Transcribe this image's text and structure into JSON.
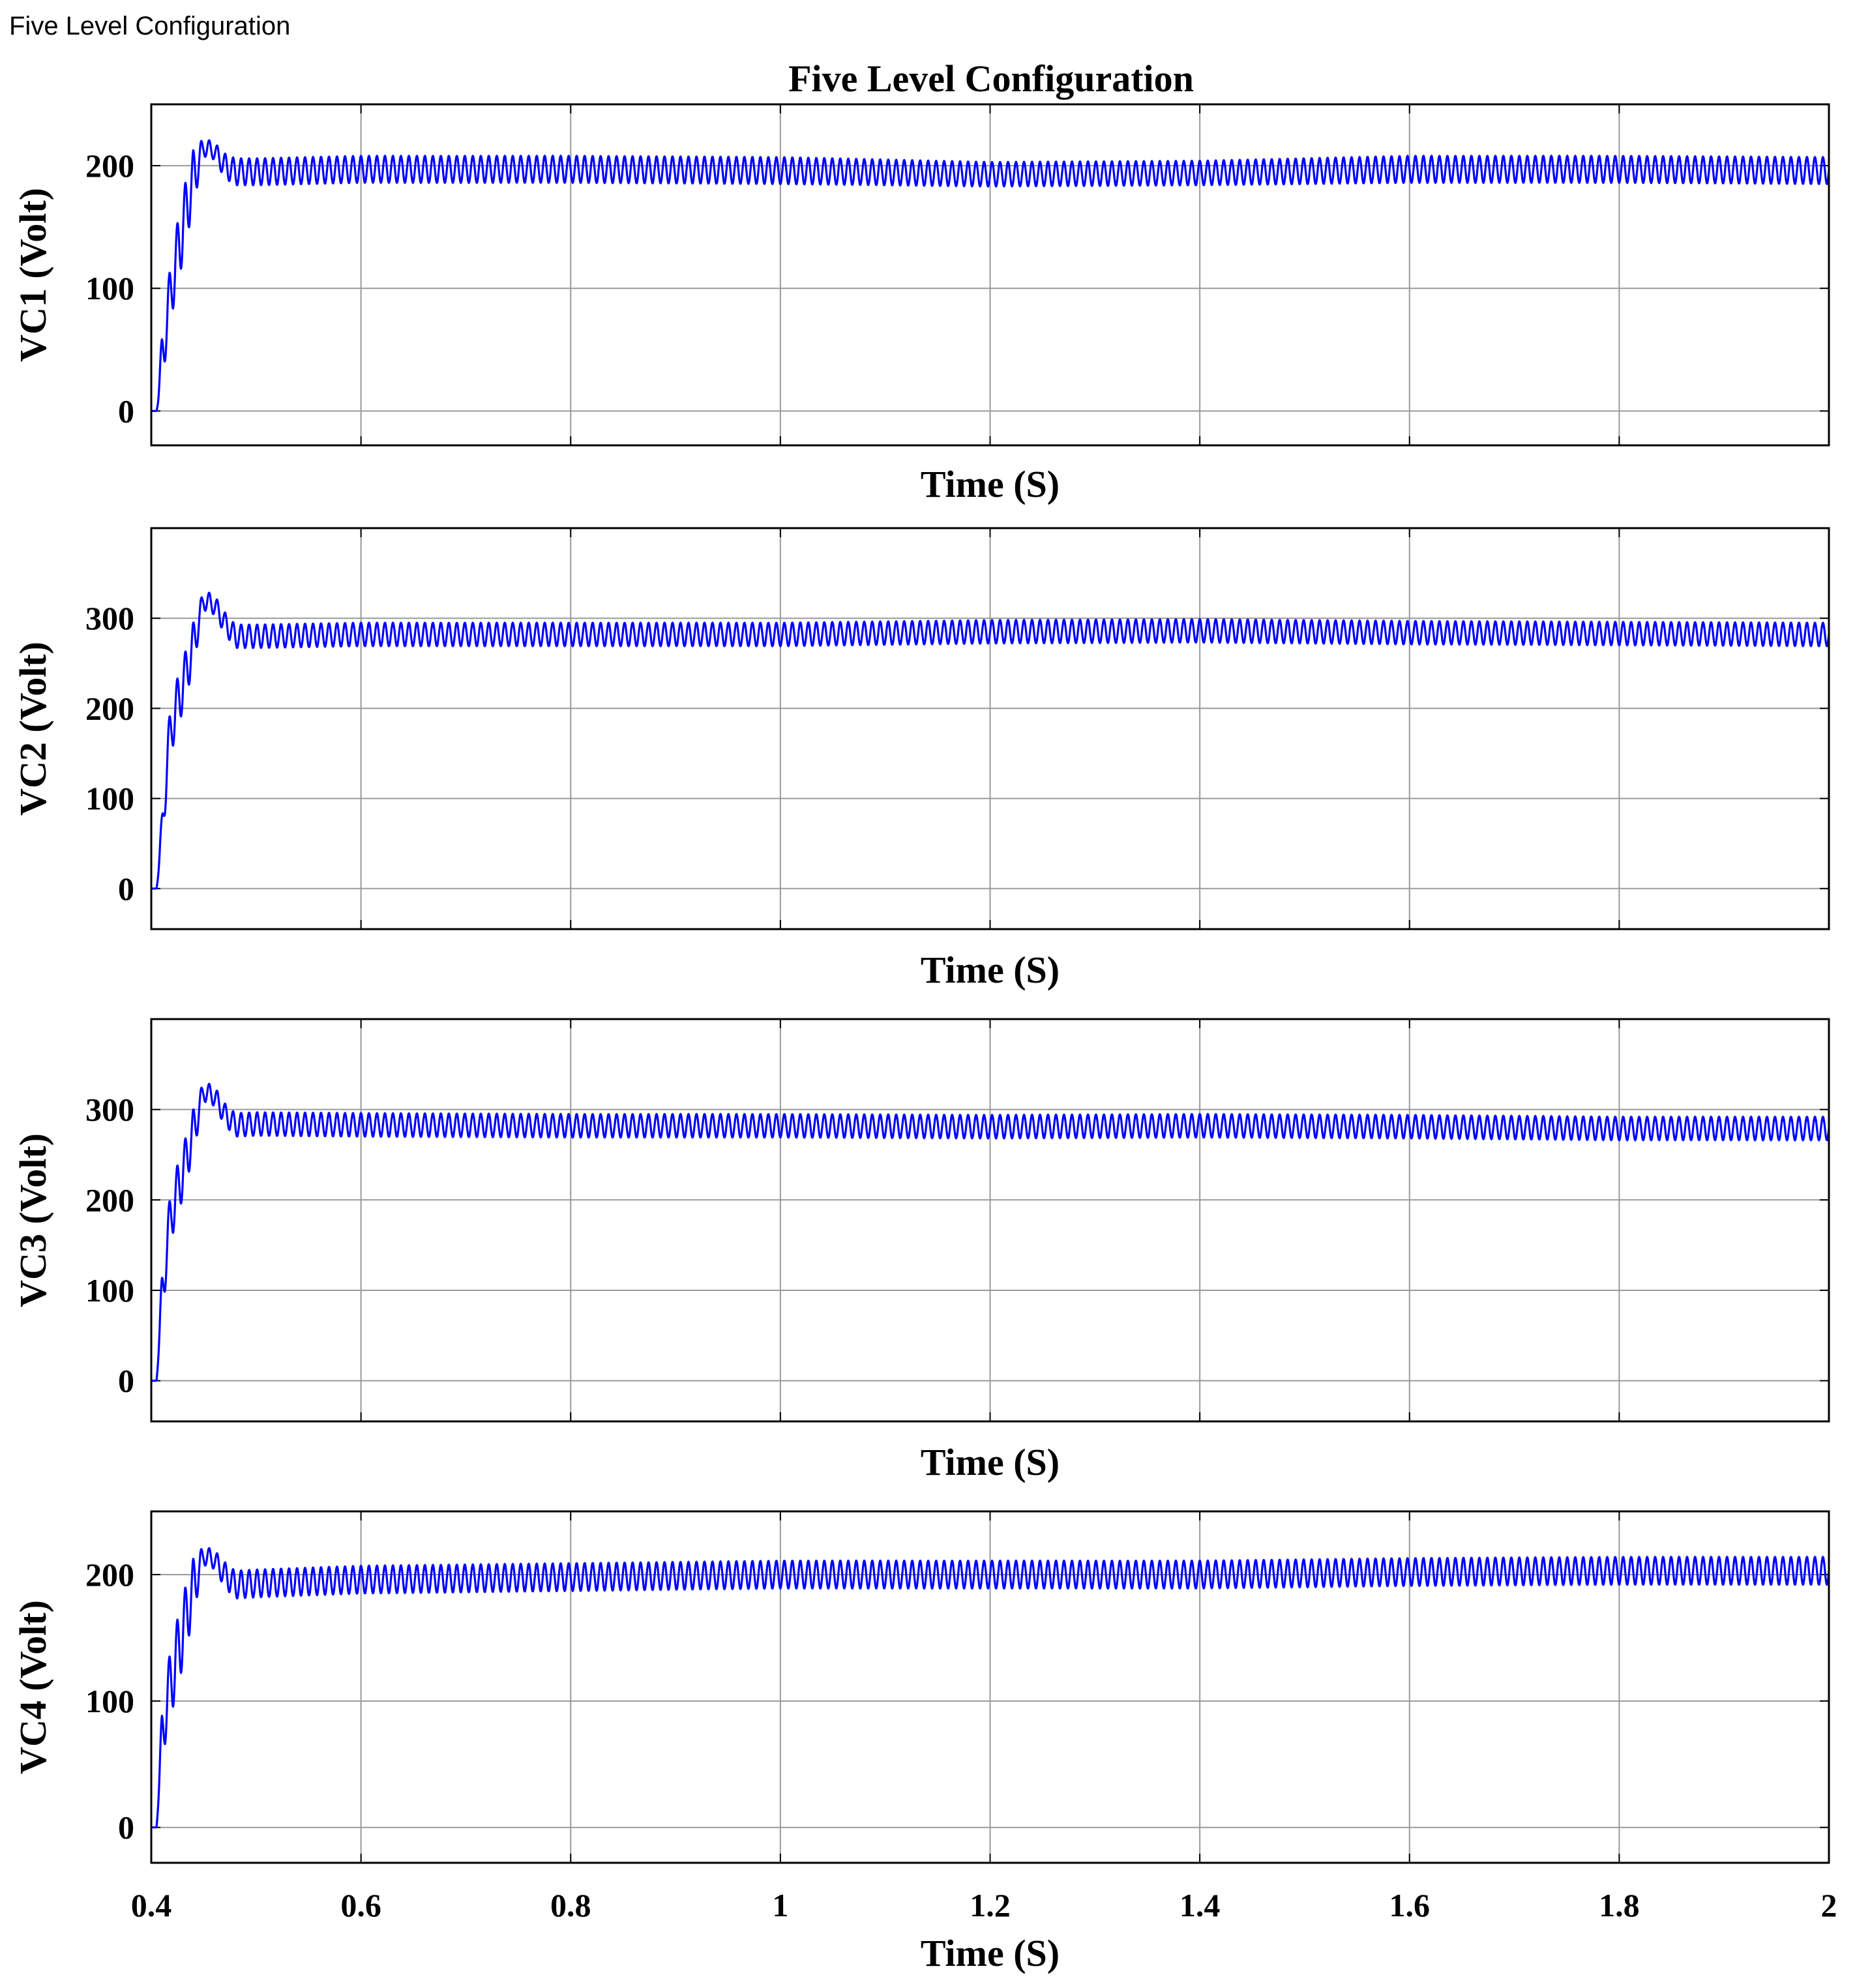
{
  "window": {
    "title": "Five Level Configuration"
  },
  "figure": {
    "title": "Five Level Configuration"
  },
  "chart_data": [
    {
      "type": "line",
      "title": "Five Level Configuration",
      "xlabel": "Time (S)",
      "ylabel": "VC1 (Volt)",
      "xlim": [
        0.4,
        2.0
      ],
      "ylim": [
        -28,
        250
      ],
      "xticks": [
        0.4,
        0.6,
        0.8,
        1.0,
        1.2,
        1.4,
        1.6,
        1.8,
        2.0
      ],
      "xtick_labels": [],
      "yticks": [
        0,
        100,
        200
      ],
      "ytick_labels": [
        "0",
        "100",
        "200"
      ],
      "grid": true,
      "color": "#0000ff",
      "series": [
        {
          "x": [
            0.4,
            0.405,
            0.41,
            0.415,
            0.42,
            0.43,
            0.44,
            0.45,
            0.46,
            0.47,
            0.48,
            0.5,
            0.6,
            0.8,
            1.0,
            1.2,
            1.4,
            1.6,
            1.8,
            2.0
          ],
          "y": [
            0,
            0,
            40,
            75,
            105,
            150,
            190,
            215,
            212,
            200,
            195,
            195,
            197,
            197,
            196,
            193,
            194,
            197,
            197,
            196
          ],
          "ripple": [
            0,
            0,
            40,
            45,
            50,
            55,
            45,
            15,
            14,
            20,
            22,
            22,
            22,
            22,
            22,
            20,
            20,
            22,
            22,
            22
          ]
        }
      ]
    },
    {
      "type": "line",
      "xlabel": "Time (S)",
      "ylabel": "VC2 (Volt)",
      "xlim": [
        0.4,
        2.0
      ],
      "ylim": [
        -45,
        400
      ],
      "xticks": [
        0.4,
        0.6,
        0.8,
        1.0,
        1.2,
        1.4,
        1.6,
        1.8,
        2.0
      ],
      "xtick_labels": [],
      "yticks": [
        0,
        100,
        200,
        300
      ],
      "ytick_labels": [
        "0",
        "100",
        "200",
        "300"
      ],
      "grid": true,
      "color": "#0000ff",
      "series": [
        {
          "x": [
            0.4,
            0.405,
            0.41,
            0.415,
            0.42,
            0.43,
            0.44,
            0.45,
            0.46,
            0.47,
            0.48,
            0.5,
            0.6,
            0.8,
            1.0,
            1.2,
            1.4,
            1.6,
            1.8,
            2.0
          ],
          "y": [
            0,
            0,
            60,
            140,
            185,
            225,
            270,
            320,
            315,
            295,
            280,
            280,
            282,
            282,
            282,
            285,
            286,
            284,
            283,
            282
          ],
          "ripple": [
            0,
            0,
            40,
            60,
            60,
            55,
            50,
            22,
            22,
            24,
            26,
            26,
            26,
            26,
            26,
            26,
            26,
            26,
            26,
            26
          ]
        }
      ]
    },
    {
      "type": "line",
      "xlabel": "Time (S)",
      "ylabel": "VC3 (Volt)",
      "xlim": [
        0.4,
        2.0
      ],
      "ylim": [
        -45,
        400
      ],
      "xticks": [
        0.4,
        0.6,
        0.8,
        1.0,
        1.2,
        1.4,
        1.6,
        1.8,
        2.0
      ],
      "xtick_labels": [],
      "yticks": [
        0,
        100,
        200,
        300
      ],
      "ytick_labels": [
        "0",
        "100",
        "200",
        "300"
      ],
      "grid": true,
      "color": "#0000ff",
      "series": [
        {
          "x": [
            0.4,
            0.405,
            0.41,
            0.415,
            0.42,
            0.43,
            0.44,
            0.45,
            0.46,
            0.47,
            0.48,
            0.5,
            0.6,
            0.8,
            1.0,
            1.2,
            1.4,
            1.6,
            1.8,
            2.0
          ],
          "y": [
            0,
            0,
            90,
            150,
            190,
            230,
            275,
            320,
            315,
            295,
            283,
            284,
            283,
            282,
            282,
            281,
            282,
            281,
            279,
            279
          ],
          "ripple": [
            0,
            0,
            50,
            60,
            60,
            55,
            50,
            22,
            22,
            24,
            26,
            26,
            26,
            26,
            26,
            26,
            26,
            26,
            26,
            26
          ]
        }
      ]
    },
    {
      "type": "line",
      "xlabel": "Time (S)",
      "ylabel": "VC4 (Volt)",
      "xlim": [
        0.4,
        2.0
      ],
      "ylim": [
        -28,
        250
      ],
      "xticks": [
        0.4,
        0.6,
        0.8,
        1.0,
        1.2,
        1.4,
        1.6,
        1.8,
        2.0
      ],
      "xtick_labels": [
        "0.4",
        "0.6",
        "0.8",
        "1",
        "1.2",
        "1.4",
        "1.6",
        "1.8",
        "2"
      ],
      "yticks": [
        0,
        100,
        200
      ],
      "ytick_labels": [
        "0",
        "100",
        "200"
      ],
      "grid": true,
      "color": "#0000ff",
      "series": [
        {
          "x": [
            0.4,
            0.405,
            0.41,
            0.415,
            0.42,
            0.43,
            0.44,
            0.45,
            0.46,
            0.47,
            0.48,
            0.5,
            0.6,
            0.8,
            1.0,
            1.2,
            1.4,
            1.6,
            1.8,
            2.0
          ],
          "y": [
            0,
            0,
            70,
            100,
            120,
            155,
            190,
            215,
            212,
            200,
            192,
            193,
            196,
            198,
            200,
            200,
            200,
            202,
            203,
            203
          ],
          "ripple": [
            0,
            0,
            40,
            50,
            55,
            55,
            45,
            15,
            15,
            20,
            22,
            22,
            22,
            22,
            22,
            22,
            22,
            22,
            22,
            22
          ]
        }
      ]
    }
  ]
}
